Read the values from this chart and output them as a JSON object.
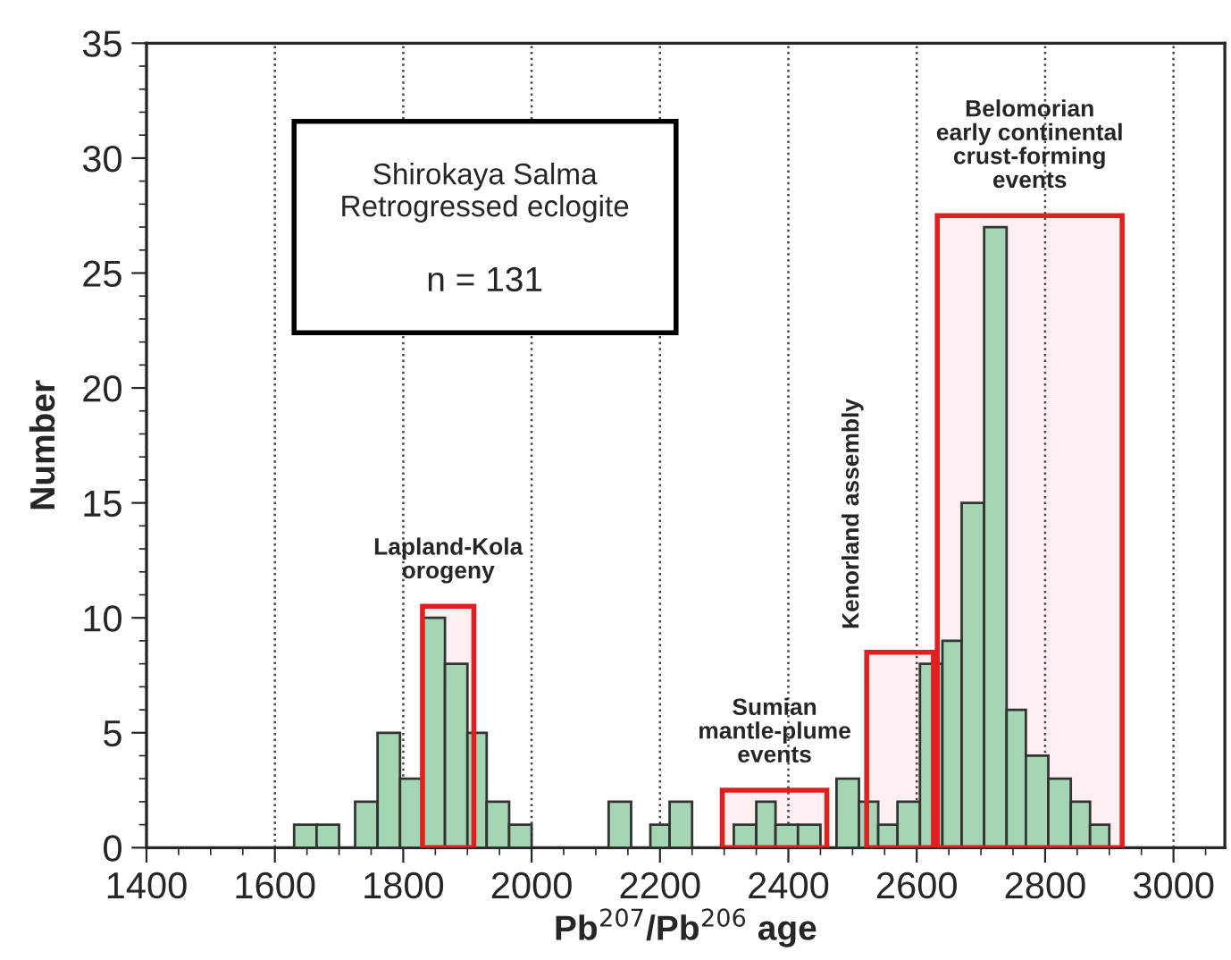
{
  "chart_data": {
    "type": "histogram",
    "xlabel": "Pb$^{207}$/Pb$^{206}$ age",
    "ylabel": "Number",
    "bins": [
      1630,
      1665,
      1700,
      1725,
      1760,
      1795,
      1830,
      1865,
      1900,
      1930,
      1965,
      2000,
      2120,
      2155,
      2185,
      2215,
      2250,
      2315,
      2350,
      2380,
      2415,
      2450,
      2475,
      2510,
      2540,
      2570,
      2605,
      2640,
      2670,
      2705,
      2740,
      2770,
      2805,
      2840,
      2870,
      2900
    ],
    "values": [
      1,
      1,
      0,
      2,
      5,
      3,
      10,
      8,
      5,
      2,
      1,
      0,
      2,
      0,
      1,
      2,
      0,
      1,
      2,
      1,
      1,
      0,
      3,
      2,
      1,
      2,
      8,
      9,
      15,
      27,
      6,
      4,
      3,
      2,
      1
    ],
    "color": "#a5d6b4",
    "xlim": [
      1400,
      3080
    ],
    "xticks": [
      1400,
      1600,
      1800,
      2000,
      2200,
      2400,
      2600,
      2800,
      3000
    ],
    "ylim": [
      0,
      35
    ],
    "yticks": [
      0,
      5,
      10,
      15,
      20,
      25,
      30,
      35
    ],
    "grid": "x",
    "bands": [
      {
        "axis": "x",
        "from": 1830,
        "to": 1910,
        "label": "Lapland-Kola\norogeny",
        "color": "#e02020"
      },
      {
        "axis": "x",
        "from": 2297,
        "to": 2460,
        "label": "Sumian\nmantle-plume\nevents",
        "color": "#e02020"
      },
      {
        "axis": "x",
        "from": 2522,
        "to": 2626,
        "label": "Kenorland assembly",
        "color": "#e02020"
      },
      {
        "axis": "x",
        "from": 2632,
        "to": 2920,
        "label": "Belomorian\nearly continental\ncrust-forming\nevents",
        "color": "#e02020"
      }
    ],
    "annotations": [
      "Shirokaya Salma\nRetrogressed eclogite",
      "n = 131"
    ]
  }
}
